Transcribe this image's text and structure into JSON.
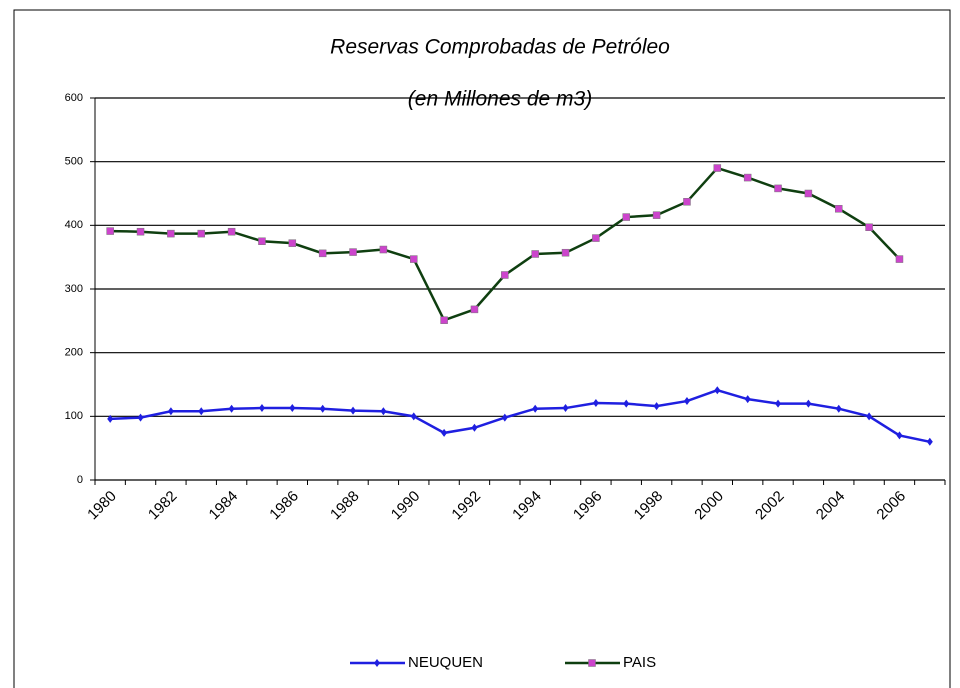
{
  "chart_data": {
    "type": "line",
    "title": "Reservas Comprobadas de Petróleo",
    "subtitle": "(en Millones de m3)",
    "categories": [
      "1980",
      null,
      "1982",
      null,
      "1984",
      null,
      "1986",
      null,
      "1988",
      null,
      "1990",
      null,
      "1992",
      null,
      "1994",
      null,
      "1996",
      null,
      "1998",
      null,
      "2000",
      null,
      "2002",
      null,
      "2004",
      null,
      "2006",
      null
    ],
    "series": [
      {
        "name": "NEUQUEN",
        "color": "#1f1fe0",
        "marker_color": "#1f1fe0",
        "values": [
          96,
          98,
          108,
          108,
          112,
          113,
          113,
          112,
          109,
          108,
          100,
          74,
          82,
          98,
          112,
          113,
          121,
          120,
          116,
          124,
          141,
          127,
          120,
          120,
          112,
          100,
          70,
          60
        ]
      },
      {
        "name": "PAIS",
        "color": "#0f3f10",
        "marker_color": "#cc44cc",
        "values": [
          391,
          390,
          387,
          387,
          390,
          375,
          372,
          356,
          358,
          362,
          347,
          251,
          268,
          322,
          355,
          357,
          380,
          413,
          416,
          437,
          490,
          475,
          458,
          450,
          426,
          397,
          347,
          null
        ]
      }
    ],
    "ylim": [
      0,
      600
    ],
    "yticks": [
      0,
      100,
      200,
      300,
      400,
      500,
      600
    ],
    "grid": true,
    "legend": "bottom"
  }
}
